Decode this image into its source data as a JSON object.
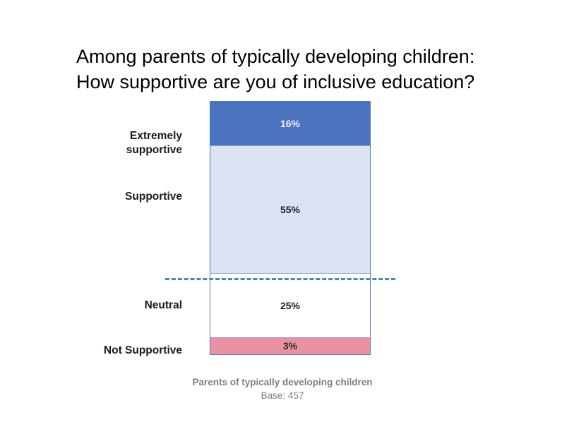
{
  "title": "Among parents of typically developing children:\nHow supportive are you of inclusive education?",
  "chart_data": {
    "type": "bar",
    "subtype": "single-stacked-column",
    "orientation": "vertical",
    "title": "Among parents of typically developing children: How supportive are you of inclusive education?",
    "categories": [
      "Extremely supportive",
      "Supportive",
      "Neutral",
      "Not Supportive"
    ],
    "values": [
      16,
      55,
      25,
      3
    ],
    "segments": [
      {
        "category": "Extremely supportive",
        "value": 16,
        "label": "16%",
        "color": "#4C74BE",
        "text_color": "#F0F0F0"
      },
      {
        "category": "Supportive",
        "value": 55,
        "label": "55%",
        "color": "#DBE2F2",
        "text_color": "#1A1A1A"
      },
      {
        "category": "Neutral",
        "value": 25,
        "label": "25%",
        "color": "#FFFFFF",
        "text_color": "#1A1A1A"
      },
      {
        "category": "Not Supportive",
        "value": 3,
        "label": "3%",
        "color": "#EA92A4",
        "text_color": "#2B2B2B"
      }
    ],
    "annotations": [
      {
        "type": "dashed-divider",
        "between": [
          "Supportive",
          "Neutral"
        ],
        "color": "#4E87AE"
      }
    ],
    "footnote": "Parents of typically developing children",
    "base_label": "Base: 457",
    "legend": "none",
    "grid": false
  },
  "labels": {
    "extremely_supportive": "Extremely\nsupportive",
    "supportive": "Supportive",
    "neutral": "Neutral",
    "not_supportive": "Not Supportive"
  },
  "footer": {
    "line1": "Parents of typically developing children",
    "line2": "Base: 457"
  },
  "colors": {
    "extremely_supportive_fill": "#4C74BE",
    "supportive_fill": "#DBE2F2",
    "neutral_fill": "#FFFFFF",
    "not_supportive_fill": "#EA92A4",
    "bar_border": "#537ABF",
    "dashed_divider": "#4E87AE",
    "footer_text": "#7F7F7F",
    "title_text": "#000000"
  }
}
